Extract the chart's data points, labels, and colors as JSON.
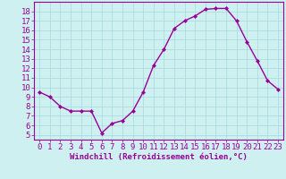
{
  "x": [
    0,
    1,
    2,
    3,
    4,
    5,
    6,
    7,
    8,
    9,
    10,
    11,
    12,
    13,
    14,
    15,
    16,
    17,
    18,
    19,
    20,
    21,
    22,
    23
  ],
  "y": [
    9.5,
    9.0,
    8.0,
    7.5,
    7.5,
    7.5,
    5.2,
    6.2,
    6.5,
    7.5,
    9.5,
    12.3,
    14.0,
    16.2,
    17.0,
    17.5,
    18.2,
    18.3,
    18.3,
    17.0,
    14.8,
    12.8,
    10.7,
    9.8
  ],
  "line_color": "#990099",
  "marker": "D",
  "marker_size": 2,
  "line_width": 1.0,
  "bg_color": "#cff0f0",
  "grid_color": "#aadddd",
  "xlabel": "Windchill (Refroidissement éolien,°C)",
  "xlabel_color": "#990099",
  "tick_color": "#990099",
  "ylim": [
    4.5,
    19.0
  ],
  "xlim": [
    -0.5,
    23.5
  ],
  "yticks": [
    5,
    6,
    7,
    8,
    9,
    10,
    11,
    12,
    13,
    14,
    15,
    16,
    17,
    18
  ],
  "xticks": [
    0,
    1,
    2,
    3,
    4,
    5,
    6,
    7,
    8,
    9,
    10,
    11,
    12,
    13,
    14,
    15,
    16,
    17,
    18,
    19,
    20,
    21,
    22,
    23
  ],
  "font_size": 6.5
}
